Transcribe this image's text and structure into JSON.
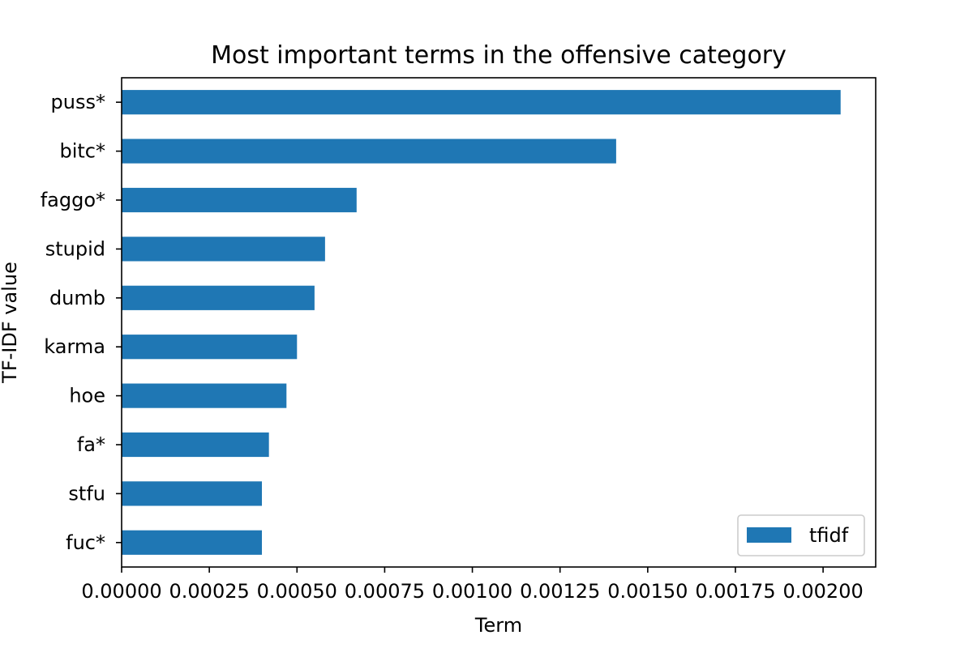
{
  "chart_data": {
    "type": "bar",
    "orientation": "horizontal",
    "title": "Most important terms in the offensive category",
    "xlabel": "Term",
    "ylabel": "TF-IDF value",
    "categories": [
      "puss*",
      "bitc*",
      "faggo*",
      "stupid",
      "dumb",
      "karma",
      "hoe",
      "fa*",
      "stfu",
      "fuc*"
    ],
    "series": [
      {
        "name": "tfidf",
        "values": [
          0.00205,
          0.00141,
          0.00067,
          0.00058,
          0.00055,
          0.0005,
          0.00047,
          0.00042,
          0.0004,
          0.0004
        ],
        "color": "#1f77b4"
      }
    ],
    "xlim": [
      0,
      0.00215
    ],
    "xticks": [
      0,
      0.00025,
      0.0005,
      0.00075,
      0.001,
      0.00125,
      0.0015,
      0.00175,
      0.002
    ],
    "xtick_labels": [
      "0.00000",
      "0.00025",
      "0.00050",
      "0.00075",
      "0.00100",
      "0.00125",
      "0.00150",
      "0.00175",
      "0.00200"
    ],
    "grid": false,
    "legend_position": "lower right"
  }
}
